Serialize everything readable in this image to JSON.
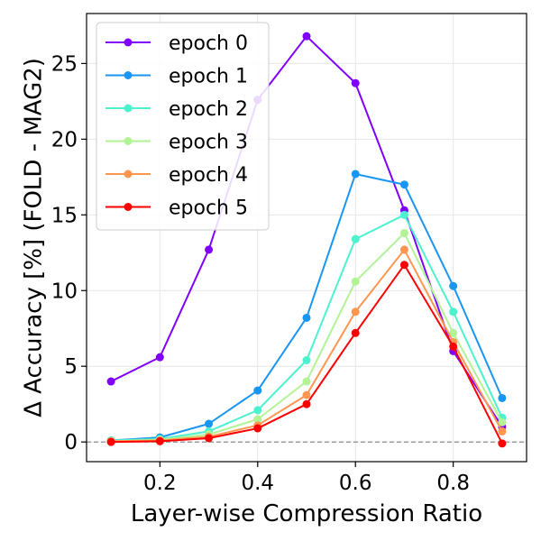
{
  "chart_data": {
    "type": "line",
    "title": "",
    "xlabel": "Layer-wise Compression Ratio",
    "ylabel": "Δ Accuracy [%] (FOLD - MAG2)",
    "xlim": [
      0.05,
      0.95
    ],
    "ylim": [
      -1.3,
      28.3
    ],
    "xticks": [
      0.2,
      0.4,
      0.6,
      0.8
    ],
    "xtick_labels": [
      "0.2",
      "0.4",
      "0.6",
      "0.8"
    ],
    "yticks": [
      0,
      5,
      10,
      15,
      20,
      25
    ],
    "ytick_labels": [
      "0",
      "5",
      "10",
      "15",
      "20",
      "25"
    ],
    "grid": true,
    "reference_line": {
      "y": 0,
      "style": "dashed",
      "color": "#808080"
    },
    "legend_position": "top-left",
    "x": [
      0.1,
      0.2,
      0.3,
      0.4,
      0.5,
      0.6,
      0.7,
      0.8,
      0.9
    ],
    "series": [
      {
        "name": "epoch 0",
        "color": "#8000ff",
        "values": [
          4.0,
          5.6,
          12.7,
          22.6,
          26.8,
          23.7,
          15.3,
          6.0,
          1.0
        ]
      },
      {
        "name": "epoch 1",
        "color": "#1996f3",
        "values": [
          0.1,
          0.3,
          1.2,
          3.4,
          8.2,
          17.7,
          17.0,
          10.3,
          2.9
        ]
      },
      {
        "name": "epoch 2",
        "color": "#4cf2ce",
        "values": [
          0.1,
          0.2,
          0.7,
          2.1,
          5.4,
          13.4,
          15.0,
          8.6,
          1.6
        ]
      },
      {
        "name": "epoch 3",
        "color": "#b2f396",
        "values": [
          0.05,
          0.15,
          0.5,
          1.5,
          4.0,
          10.6,
          13.8,
          7.2,
          1.3
        ]
      },
      {
        "name": "epoch 4",
        "color": "#ff964f",
        "values": [
          0.05,
          0.1,
          0.35,
          1.1,
          3.1,
          8.6,
          12.7,
          6.6,
          0.7
        ]
      },
      {
        "name": "epoch 5",
        "color": "#ff0000",
        "values": [
          0.0,
          0.05,
          0.25,
          0.9,
          2.5,
          7.2,
          11.7,
          6.3,
          -0.1
        ]
      }
    ]
  }
}
